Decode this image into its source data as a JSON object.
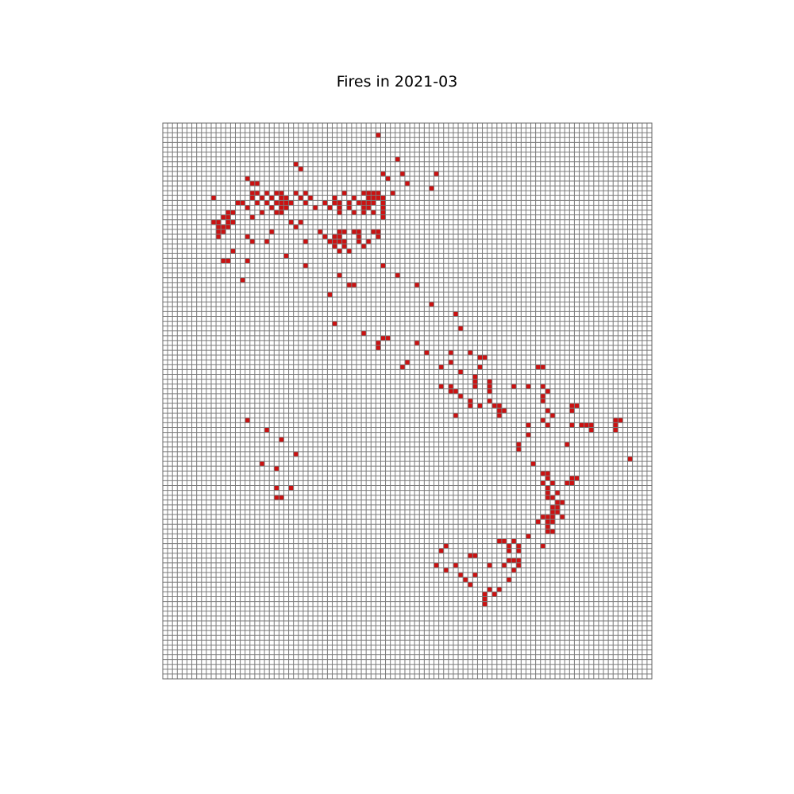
{
  "chart_data": {
    "type": "heatmap",
    "title": "Fires in 2021-03",
    "grid": {
      "columns": 101,
      "rows": 115
    },
    "colors": {
      "fire": "#cc1111",
      "empty_cell": "#ffffff",
      "grid_line": "#7a7a7a",
      "frame": "#666666"
    },
    "fire_cells": [
      [
        44,
        2
      ],
      [
        48,
        7
      ],
      [
        27,
        8
      ],
      [
        28,
        9
      ],
      [
        45,
        10
      ],
      [
        49,
        10
      ],
      [
        56,
        10
      ],
      [
        17,
        11
      ],
      [
        46,
        11
      ],
      [
        50,
        12
      ],
      [
        55,
        13
      ],
      [
        18,
        12
      ],
      [
        19,
        12
      ],
      [
        18,
        14
      ],
      [
        19,
        14
      ],
      [
        21,
        14
      ],
      [
        23,
        14
      ],
      [
        24,
        14
      ],
      [
        27,
        14
      ],
      [
        29,
        14
      ],
      [
        37,
        14
      ],
      [
        41,
        14
      ],
      [
        42,
        14
      ],
      [
        43,
        14
      ],
      [
        44,
        14
      ],
      [
        47,
        14
      ],
      [
        10,
        15
      ],
      [
        18,
        15
      ],
      [
        20,
        15
      ],
      [
        22,
        15
      ],
      [
        24,
        15
      ],
      [
        25,
        15
      ],
      [
        28,
        15
      ],
      [
        30,
        15
      ],
      [
        35,
        15
      ],
      [
        39,
        15
      ],
      [
        42,
        15
      ],
      [
        43,
        15
      ],
      [
        44,
        15
      ],
      [
        45,
        15
      ],
      [
        15,
        16
      ],
      [
        16,
        16
      ],
      [
        19,
        16
      ],
      [
        21,
        16
      ],
      [
        23,
        16
      ],
      [
        24,
        16
      ],
      [
        25,
        16
      ],
      [
        26,
        16
      ],
      [
        29,
        16
      ],
      [
        33,
        16
      ],
      [
        35,
        16
      ],
      [
        36,
        16
      ],
      [
        38,
        16
      ],
      [
        40,
        16
      ],
      [
        41,
        16
      ],
      [
        42,
        16
      ],
      [
        43,
        16
      ],
      [
        45,
        16
      ],
      [
        17,
        17
      ],
      [
        22,
        17
      ],
      [
        24,
        17
      ],
      [
        25,
        17
      ],
      [
        31,
        17
      ],
      [
        34,
        17
      ],
      [
        36,
        17
      ],
      [
        38,
        17
      ],
      [
        41,
        17
      ],
      [
        42,
        17
      ],
      [
        45,
        17
      ],
      [
        13,
        18
      ],
      [
        14,
        18
      ],
      [
        20,
        18
      ],
      [
        23,
        18
      ],
      [
        24,
        18
      ],
      [
        36,
        18
      ],
      [
        39,
        18
      ],
      [
        41,
        18
      ],
      [
        43,
        18
      ],
      [
        45,
        18
      ],
      [
        12,
        19
      ],
      [
        13,
        19
      ],
      [
        18,
        19
      ],
      [
        45,
        19
      ],
      [
        10,
        20
      ],
      [
        11,
        20
      ],
      [
        13,
        20
      ],
      [
        14,
        20
      ],
      [
        26,
        20
      ],
      [
        28,
        20
      ],
      [
        11,
        21
      ],
      [
        12,
        21
      ],
      [
        13,
        21
      ],
      [
        27,
        21
      ],
      [
        11,
        22
      ],
      [
        12,
        22
      ],
      [
        22,
        22
      ],
      [
        32,
        22
      ],
      [
        36,
        22
      ],
      [
        37,
        22
      ],
      [
        39,
        22
      ],
      [
        40,
        22
      ],
      [
        43,
        22
      ],
      [
        44,
        22
      ],
      [
        11,
        23
      ],
      [
        17,
        23
      ],
      [
        33,
        23
      ],
      [
        35,
        23
      ],
      [
        36,
        23
      ],
      [
        40,
        23
      ],
      [
        44,
        23
      ],
      [
        18,
        24
      ],
      [
        21,
        24
      ],
      [
        29,
        24
      ],
      [
        34,
        24
      ],
      [
        35,
        24
      ],
      [
        36,
        24
      ],
      [
        37,
        24
      ],
      [
        40,
        24
      ],
      [
        42,
        24
      ],
      [
        35,
        25
      ],
      [
        37,
        25
      ],
      [
        41,
        25
      ],
      [
        14,
        26
      ],
      [
        36,
        26
      ],
      [
        38,
        26
      ],
      [
        25,
        27
      ],
      [
        12,
        28
      ],
      [
        13,
        28
      ],
      [
        17,
        28
      ],
      [
        29,
        29
      ],
      [
        45,
        29
      ],
      [
        36,
        31
      ],
      [
        48,
        31
      ],
      [
        16,
        32
      ],
      [
        38,
        33
      ],
      [
        39,
        33
      ],
      [
        52,
        33
      ],
      [
        34,
        35
      ],
      [
        55,
        37
      ],
      [
        60,
        39
      ],
      [
        35,
        41
      ],
      [
        61,
        42
      ],
      [
        41,
        43
      ],
      [
        45,
        44
      ],
      [
        46,
        44
      ],
      [
        44,
        45
      ],
      [
        52,
        45
      ],
      [
        44,
        46
      ],
      [
        54,
        47
      ],
      [
        59,
        47
      ],
      [
        63,
        47
      ],
      [
        65,
        48
      ],
      [
        66,
        48
      ],
      [
        50,
        49
      ],
      [
        59,
        49
      ],
      [
        49,
        50
      ],
      [
        57,
        50
      ],
      [
        65,
        50
      ],
      [
        77,
        50
      ],
      [
        78,
        50
      ],
      [
        61,
        51
      ],
      [
        64,
        52
      ],
      [
        64,
        53
      ],
      [
        67,
        53
      ],
      [
        57,
        54
      ],
      [
        59,
        54
      ],
      [
        64,
        54
      ],
      [
        67,
        54
      ],
      [
        72,
        54
      ],
      [
        75,
        54
      ],
      [
        78,
        54
      ],
      [
        59,
        55
      ],
      [
        60,
        55
      ],
      [
        67,
        55
      ],
      [
        79,
        55
      ],
      [
        61,
        56
      ],
      [
        78,
        56
      ],
      [
        63,
        57
      ],
      [
        67,
        57
      ],
      [
        78,
        57
      ],
      [
        63,
        58
      ],
      [
        65,
        58
      ],
      [
        68,
        58
      ],
      [
        69,
        58
      ],
      [
        84,
        58
      ],
      [
        85,
        58
      ],
      [
        69,
        59
      ],
      [
        70,
        59
      ],
      [
        79,
        59
      ],
      [
        84,
        59
      ],
      [
        60,
        60
      ],
      [
        69,
        60
      ],
      [
        80,
        60
      ],
      [
        17,
        61
      ],
      [
        78,
        61
      ],
      [
        93,
        61
      ],
      [
        94,
        61
      ],
      [
        75,
        62
      ],
      [
        79,
        62
      ],
      [
        84,
        62
      ],
      [
        86,
        62
      ],
      [
        87,
        62
      ],
      [
        88,
        62
      ],
      [
        93,
        62
      ],
      [
        21,
        63
      ],
      [
        88,
        63
      ],
      [
        93,
        63
      ],
      [
        75,
        64
      ],
      [
        24,
        65
      ],
      [
        73,
        66
      ],
      [
        83,
        66
      ],
      [
        73,
        67
      ],
      [
        27,
        68
      ],
      [
        96,
        69
      ],
      [
        20,
        70
      ],
      [
        76,
        70
      ],
      [
        23,
        71
      ],
      [
        78,
        72
      ],
      [
        79,
        72
      ],
      [
        79,
        73
      ],
      [
        84,
        73
      ],
      [
        85,
        73
      ],
      [
        78,
        74
      ],
      [
        80,
        74
      ],
      [
        83,
        74
      ],
      [
        84,
        74
      ],
      [
        23,
        75
      ],
      [
        26,
        75
      ],
      [
        79,
        75
      ],
      [
        79,
        76
      ],
      [
        81,
        76
      ],
      [
        23,
        77
      ],
      [
        24,
        77
      ],
      [
        79,
        77
      ],
      [
        80,
        77
      ],
      [
        81,
        78
      ],
      [
        82,
        78
      ],
      [
        80,
        79
      ],
      [
        81,
        79
      ],
      [
        80,
        80
      ],
      [
        81,
        80
      ],
      [
        78,
        81
      ],
      [
        79,
        81
      ],
      [
        80,
        81
      ],
      [
        82,
        81
      ],
      [
        77,
        82
      ],
      [
        79,
        82
      ],
      [
        80,
        82
      ],
      [
        79,
        83
      ],
      [
        79,
        84
      ],
      [
        80,
        84
      ],
      [
        75,
        85
      ],
      [
        69,
        86
      ],
      [
        70,
        86
      ],
      [
        72,
        86
      ],
      [
        58,
        87
      ],
      [
        71,
        87
      ],
      [
        73,
        87
      ],
      [
        78,
        87
      ],
      [
        57,
        88
      ],
      [
        71,
        88
      ],
      [
        73,
        88
      ],
      [
        63,
        89
      ],
      [
        64,
        89
      ],
      [
        71,
        90
      ],
      [
        72,
        90
      ],
      [
        73,
        90
      ],
      [
        56,
        91
      ],
      [
        60,
        91
      ],
      [
        67,
        91
      ],
      [
        70,
        91
      ],
      [
        73,
        91
      ],
      [
        58,
        92
      ],
      [
        72,
        92
      ],
      [
        61,
        93
      ],
      [
        64,
        93
      ],
      [
        62,
        94
      ],
      [
        71,
        94
      ],
      [
        63,
        95
      ],
      [
        67,
        96
      ],
      [
        69,
        96
      ],
      [
        66,
        97
      ],
      [
        68,
        97
      ],
      [
        66,
        98
      ],
      [
        66,
        99
      ]
    ]
  }
}
